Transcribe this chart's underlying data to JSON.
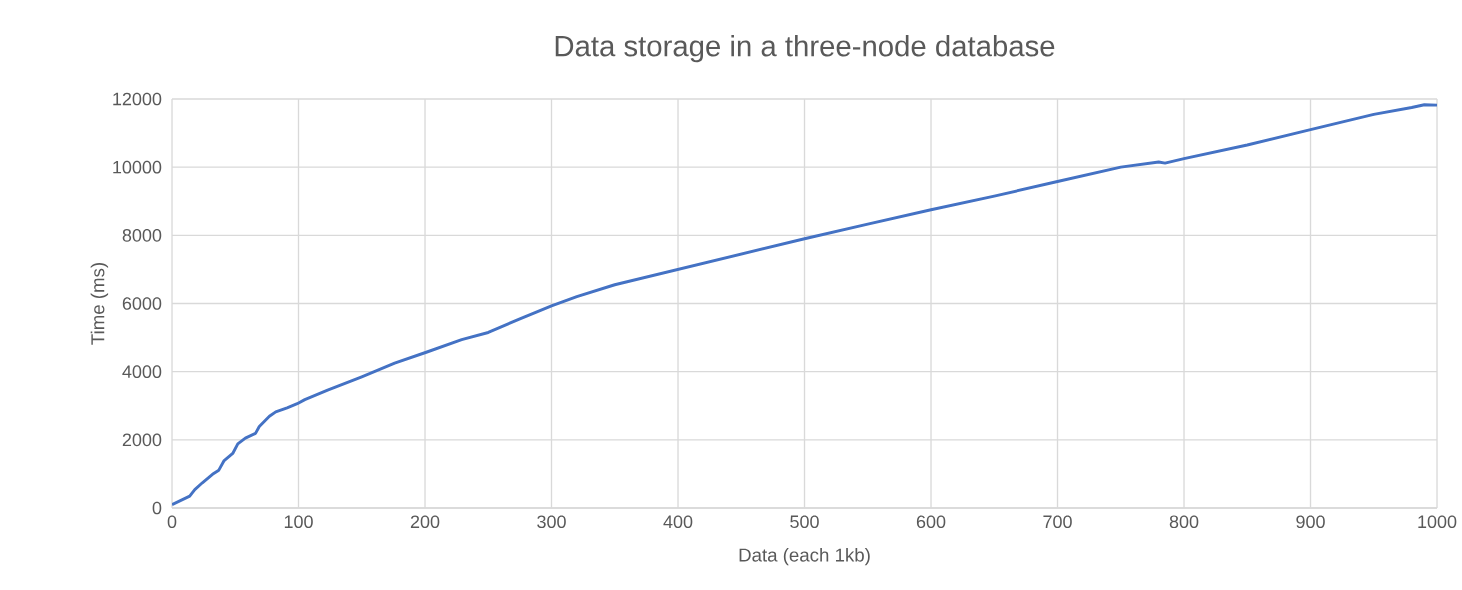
{
  "chart_data": {
    "type": "line",
    "title": "Data storage in a three-node database",
    "xlabel": "Data (each 1kb)",
    "ylabel": "Time (ms)",
    "xlim": [
      0,
      1000
    ],
    "xticks": [
      0,
      100,
      200,
      300,
      400,
      500,
      600,
      700,
      800,
      900,
      1000
    ],
    "ylim": [
      0,
      12000
    ],
    "yticks": [
      0,
      2000,
      4000,
      6000,
      8000,
      10000,
      12000
    ],
    "grid": true,
    "marker": "none",
    "line_style": "solid",
    "x": [
      0,
      14,
      18,
      24,
      32,
      37,
      41,
      48,
      52,
      58,
      66,
      69,
      77,
      82,
      91,
      99,
      105,
      123,
      150,
      176,
      201,
      229,
      250,
      275,
      300,
      320,
      350,
      400,
      450,
      500,
      550,
      600,
      650,
      700,
      750,
      780,
      785,
      800,
      850,
      900,
      950,
      980,
      990,
      1000
    ],
    "series": [
      {
        "color": "#4472c4",
        "values": [
          100,
          350,
          540,
          740,
          990,
          1110,
          1380,
          1600,
          1880,
          2050,
          2190,
          2390,
          2690,
          2820,
          2940,
          3060,
          3180,
          3460,
          3850,
          4250,
          4570,
          4940,
          5150,
          5550,
          5930,
          6200,
          6550,
          7000,
          7450,
          7900,
          8330,
          8750,
          9150,
          9580,
          10000,
          10150,
          10120,
          10250,
          10650,
          11100,
          11550,
          11750,
          11830,
          11820
        ]
      }
    ]
  }
}
